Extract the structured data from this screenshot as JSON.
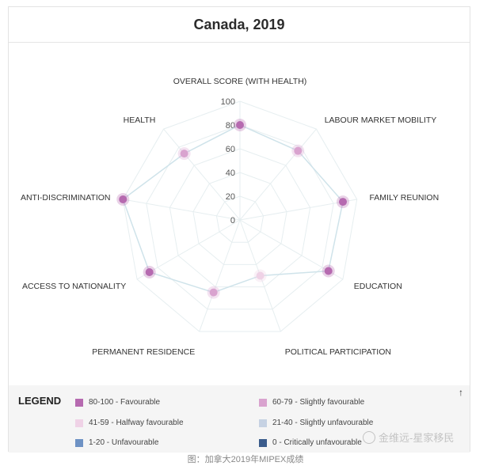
{
  "page": {
    "title": "Canada, 2019",
    "caption": "图：加拿大2019年MIPEX成绩",
    "watermark": "金维远-星家移民"
  },
  "legend": {
    "title": "LEGEND",
    "collapse_icon": "arrow-up-icon",
    "items": [
      {
        "label": "80-100 - Favourable",
        "color": "#b66ab0"
      },
      {
        "label": "60-79 - Slightly favourable",
        "color": "#d9a3cf"
      },
      {
        "label": "41-59 - Halfway favourable",
        "color": "#efd2e6"
      },
      {
        "label": "21-40 - Slightly unfavourable",
        "color": "#c6d2e3"
      },
      {
        "label": "1-20 - Unfavourable",
        "color": "#6e92c4"
      },
      {
        "label": "0 - Critically unfavourable",
        "color": "#3b5c8c"
      }
    ]
  },
  "chart_data": {
    "type": "radar",
    "title": "Canada, 2019",
    "categories": [
      "OVERALL SCORE (WITH HEALTH)",
      "LABOUR MARKET MOBILITY",
      "FAMILY REUNION",
      "EDUCATION",
      "POLITICAL PARTICIPATION",
      "PERMANENT RESIDENCE",
      "ACCESS TO NATIONALITY",
      "ANTI-DISCRIMINATION",
      "HEALTH"
    ],
    "values": [
      80,
      76,
      88,
      86,
      50,
      65,
      88,
      100,
      73
    ],
    "rlim": [
      0,
      100
    ],
    "tick_labels": [
      "0",
      "20",
      "40",
      "60",
      "80",
      "100"
    ],
    "grid": true,
    "line_color": "#cfe3ea",
    "grid_color": "#e6eef0"
  }
}
